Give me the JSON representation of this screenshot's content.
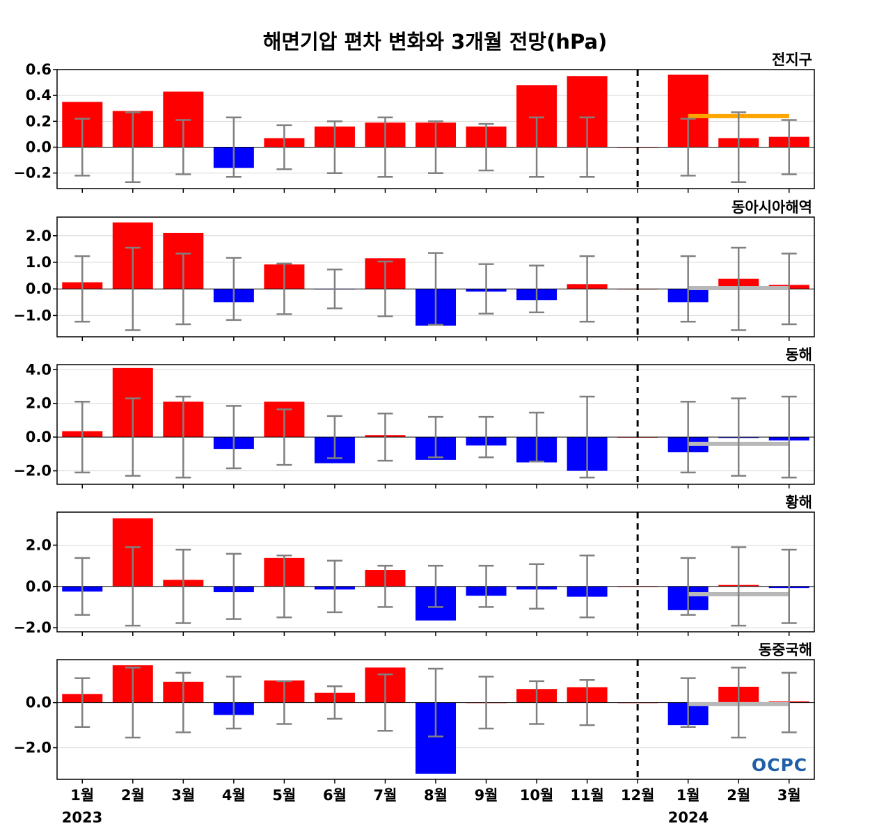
{
  "title": "해면기압 편차 변화와 3개월 전망(hPa)",
  "logo_text": "OCPC",
  "year_labels": [
    "2023",
    "2024"
  ],
  "colors": {
    "positive": "#ff0000",
    "negative": "#0000ff",
    "errorbar": "#808080",
    "grid": "#d9d9d9",
    "global_forecast_line": "#ffa500",
    "regional_forecast_line": "#b8b8b8"
  },
  "chart_data": {
    "type": "bar",
    "categories": [
      "1월",
      "2월",
      "3월",
      "4월",
      "5월",
      "6월",
      "7월",
      "8월",
      "9월",
      "10월",
      "11월",
      "12월",
      "1월",
      "2월",
      "3월"
    ],
    "observed_months": 11,
    "forecast_divider_after_index": 11,
    "panels": [
      {
        "name": "전지구",
        "ylim": [
          -0.32,
          0.6
        ],
        "ticks": [
          -0.2,
          0.0,
          0.2,
          0.4,
          0.6
        ],
        "tick_labels": [
          "−0.2",
          "0.0",
          "0.2",
          "0.4",
          "0.6"
        ],
        "values": [
          0.35,
          0.28,
          0.43,
          -0.16,
          0.07,
          0.16,
          0.19,
          0.19,
          0.16,
          0.48,
          0.55,
          0.0,
          0.56,
          0.07,
          0.08
        ],
        "errorbar_half": [
          0.22,
          0.27,
          0.21,
          0.23,
          0.17,
          0.2,
          0.23,
          0.2,
          0.18,
          0.23,
          0.23,
          null,
          0.22,
          0.27,
          0.21
        ],
        "forecast_mean": 0.24,
        "forecast_line_color": "#ffa500"
      },
      {
        "name": "동아시아해역",
        "ylim": [
          -1.8,
          2.7
        ],
        "ticks": [
          -1.0,
          0.0,
          1.0,
          2.0
        ],
        "tick_labels": [
          "−1.0",
          "0.0",
          "1.0",
          "2.0"
        ],
        "values": [
          0.25,
          2.5,
          2.1,
          -0.5,
          0.92,
          -0.02,
          1.15,
          -1.38,
          -0.1,
          -0.42,
          0.18,
          0.0,
          -0.5,
          0.38,
          0.15
        ],
        "errorbar_half": [
          1.23,
          1.55,
          1.33,
          1.17,
          0.95,
          0.73,
          1.03,
          1.35,
          0.93,
          0.88,
          1.23,
          null,
          1.23,
          1.55,
          1.33
        ],
        "forecast_mean": 0.03,
        "forecast_line_color": "#b8b8b8"
      },
      {
        "name": "동해",
        "ylim": [
          -2.8,
          4.3
        ],
        "ticks": [
          -2.0,
          0.0,
          2.0,
          4.0
        ],
        "tick_labels": [
          "−2.0",
          "0.0",
          "2.0",
          "4.0"
        ],
        "values": [
          0.35,
          4.1,
          2.1,
          -0.7,
          2.1,
          -1.55,
          0.12,
          -1.35,
          -0.5,
          -1.5,
          -2.0,
          0.0,
          -0.9,
          -0.05,
          -0.2
        ],
        "errorbar_half": [
          2.1,
          2.3,
          2.4,
          1.85,
          1.65,
          1.25,
          1.4,
          1.2,
          1.2,
          1.45,
          2.4,
          null,
          2.1,
          2.3,
          2.4
        ],
        "forecast_mean": -0.4,
        "forecast_line_color": "#b8b8b8"
      },
      {
        "name": "황해",
        "ylim": [
          -2.2,
          3.6
        ],
        "ticks": [
          -2.0,
          0.0,
          2.0
        ],
        "tick_labels": [
          "−2.0",
          "0.0",
          "2.0"
        ],
        "values": [
          -0.25,
          3.3,
          0.32,
          -0.28,
          1.38,
          -0.15,
          0.8,
          -1.65,
          -0.45,
          -0.15,
          -0.5,
          0.0,
          -1.15,
          0.07,
          -0.08
        ],
        "errorbar_half": [
          1.38,
          1.9,
          1.78,
          1.58,
          1.5,
          1.25,
          1.0,
          1.0,
          1.0,
          1.08,
          1.5,
          null,
          1.38,
          1.9,
          1.78
        ],
        "forecast_mean": -0.38,
        "forecast_line_color": "#b8b8b8"
      },
      {
        "name": "동중국해",
        "ylim": [
          -3.4,
          1.9
        ],
        "ticks": [
          -2.0,
          0.0
        ],
        "tick_labels": [
          "−2.0",
          "0.0"
        ],
        "values": [
          0.38,
          1.65,
          0.92,
          -0.55,
          0.98,
          0.43,
          1.55,
          -3.15,
          0.0,
          0.6,
          0.68,
          0.0,
          -1.0,
          0.7,
          0.05
        ],
        "errorbar_half": [
          1.08,
          1.55,
          1.32,
          1.15,
          0.95,
          0.72,
          1.25,
          1.5,
          1.15,
          0.95,
          1.0,
          null,
          1.08,
          1.55,
          1.32
        ],
        "forecast_mean": -0.07,
        "forecast_line_color": "#b8b8b8"
      }
    ]
  }
}
